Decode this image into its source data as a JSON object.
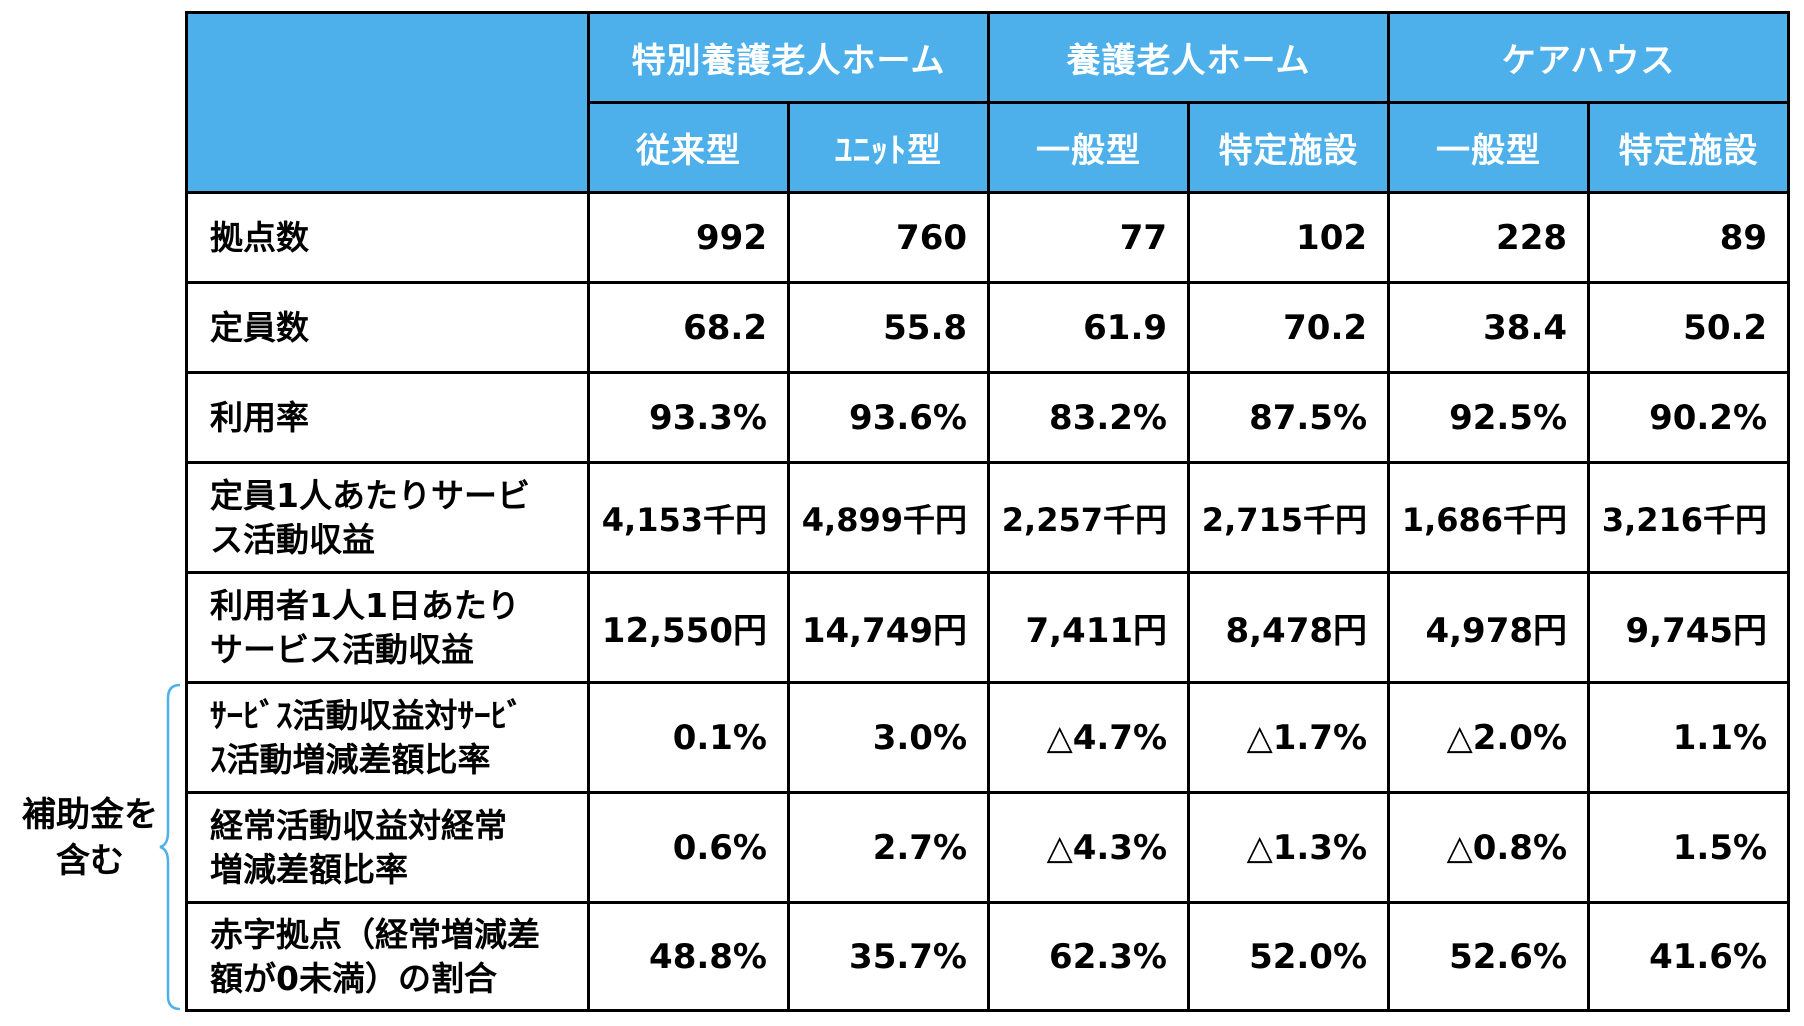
{
  "header": {
    "groups": [
      "特別養護老人ホーム",
      "養護老人ホーム",
      "ケアハウス"
    ],
    "subtypes": [
      "従来型",
      "ﾕﾆｯﾄ型",
      "一般型",
      "特定施設",
      "一般型",
      "特定施設"
    ]
  },
  "rows": [
    {
      "label": "拠点数",
      "values": [
        "992",
        "760",
        "77",
        "102",
        "228",
        "89"
      ]
    },
    {
      "label": "定員数",
      "values": [
        "68.2",
        "55.8",
        "61.9",
        "70.2",
        "38.4",
        "50.2"
      ]
    },
    {
      "label": "利用率",
      "values": [
        "93.3%",
        "93.6%",
        "83.2%",
        "87.5%",
        "92.5%",
        "90.2%"
      ]
    },
    {
      "label_lines": [
        "定員1人あたりサービ",
        "ス活動収益"
      ],
      "values": [
        "4,153千円",
        "4,899千円",
        "2,257千円",
        "2,715千円",
        "1,686千円",
        "3,216千円"
      ]
    },
    {
      "label_lines": [
        "利用者1人1日あたり",
        "サービス活動収益"
      ],
      "values": [
        "12,550円",
        "14,749円",
        "7,411円",
        "8,478円",
        "4,978円",
        "9,745円"
      ]
    },
    {
      "label_lines": [
        "ｻｰﾋﾞｽ活動収益対ｻｰﾋﾞ",
        "ｽ活動増減差額比率"
      ],
      "values": [
        "0.1%",
        "3.0%",
        "△4.7%",
        "△1.7%",
        "△2.0%",
        "1.1%"
      ]
    },
    {
      "label_lines": [
        "経常活動収益対経常",
        "増減差額比率"
      ],
      "values": [
        "0.6%",
        "2.7%",
        "△4.3%",
        "△1.3%",
        "△0.8%",
        "1.5%"
      ]
    },
    {
      "label_lines": [
        "赤字拠点（経常増減差",
        "額が0未満）の割合"
      ],
      "values": [
        "48.8%",
        "35.7%",
        "62.3%",
        "52.0%",
        "52.6%",
        "41.6%"
      ]
    }
  ],
  "note": {
    "lines": [
      "補助金を",
      "含む"
    ]
  },
  "colors": {
    "header_bg": "#4db0eb",
    "header_text": "#ffffff",
    "bracket": "#4db0eb"
  }
}
